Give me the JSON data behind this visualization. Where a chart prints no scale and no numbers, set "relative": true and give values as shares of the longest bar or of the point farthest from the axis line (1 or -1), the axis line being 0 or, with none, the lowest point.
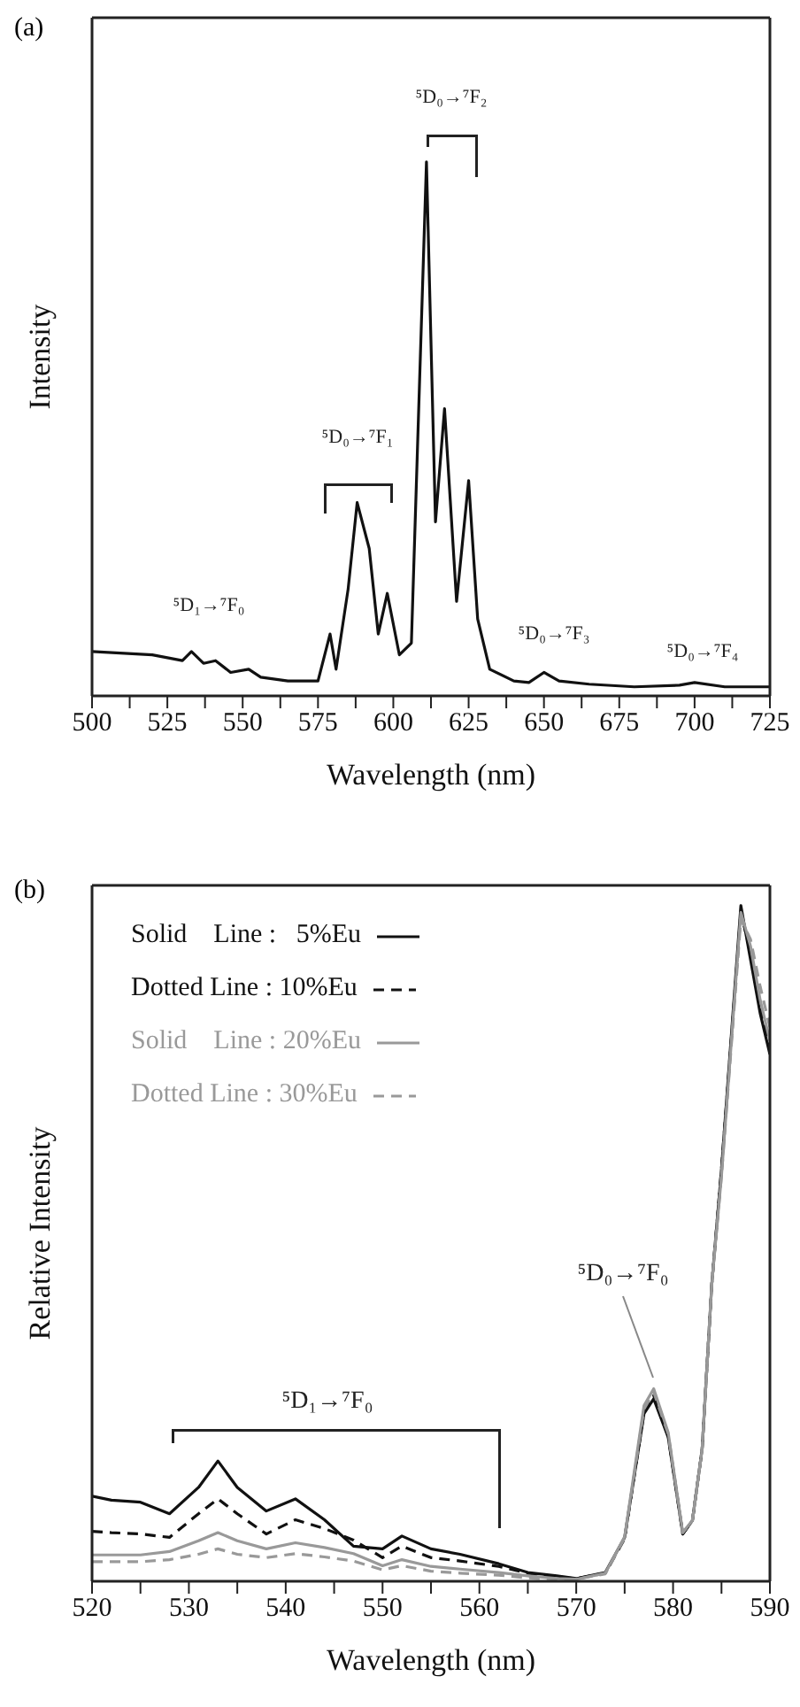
{
  "chart_data": [
    {
      "type": "line",
      "title": "(a)",
      "xlabel": "Wavelength (nm)",
      "ylabel": "Intensity",
      "relative": true,
      "x": [
        500,
        520,
        530,
        533,
        537,
        541,
        546,
        552,
        556,
        565,
        575,
        579,
        581,
        585,
        588,
        592,
        595,
        598,
        602,
        606,
        611,
        614,
        617,
        621,
        625,
        628,
        632,
        640,
        645,
        650,
        655,
        665,
        680,
        695,
        700,
        710,
        725
      ],
      "series": [
        {
          "color": "#111111",
          "line_style": "solid",
          "values": [
            0.083,
            0.077,
            0.066,
            0.083,
            0.061,
            0.066,
            0.044,
            0.05,
            0.035,
            0.028,
            0.028,
            0.116,
            0.05,
            0.2,
            0.362,
            0.276,
            0.116,
            0.192,
            0.077,
            0.099,
            1,
            0.326,
            0.538,
            0.177,
            0.403,
            0.144,
            0.05,
            0.028,
            0.025,
            0.044,
            0.028,
            0.022,
            0.017,
            0.02,
            0.025,
            0.017,
            0.017
          ]
        }
      ],
      "xlim": [
        500,
        725
      ],
      "xticks": [
        500,
        {
          "value": 512.5,
          "label": null
        },
        525,
        {
          "value": 537.5,
          "label": null
        },
        550,
        {
          "value": 562.5,
          "label": null
        },
        575,
        {
          "value": 587.5,
          "label": null
        },
        600,
        {
          "value": 612.5,
          "label": null
        },
        625,
        {
          "value": 637.5,
          "label": null
        },
        650,
        {
          "value": 662.5,
          "label": null
        },
        675,
        {
          "value": 687.5,
          "label": null
        },
        700,
        {
          "value": 712.5,
          "label": null
        },
        725
      ],
      "annotations": [
        "⁵D₁→⁷F₀",
        "⁵D₀→⁷F₁",
        "⁵D₀→⁷F₂",
        "⁵D₀→⁷F₃",
        "⁵D₀→⁷F₄"
      ],
      "grid": false,
      "legend": false
    },
    {
      "type": "line",
      "title": "(b)",
      "xlabel": "Wavelength (nm)",
      "ylabel": "Relative Intensity",
      "relative": true,
      "x": [
        520,
        522,
        525,
        528,
        531,
        533,
        535,
        538,
        541,
        544,
        547,
        550,
        552,
        555,
        558,
        562,
        565,
        568,
        570,
        573,
        575,
        577,
        578,
        579.5,
        581,
        582,
        583,
        584,
        585,
        587,
        588,
        589,
        590
      ],
      "series": [
        {
          "name": "Solid    Line :   5%Eu",
          "color": "#111111",
          "line_style": "solid",
          "values": [
            0.126,
            0.12,
            0.117,
            0.1,
            0.139,
            0.178,
            0.139,
            0.104,
            0.122,
            0.091,
            0.052,
            0.048,
            0.067,
            0.048,
            0.04,
            0.026,
            0.013,
            0.008,
            0.004,
            0.013,
            0.065,
            0.248,
            0.27,
            0.213,
            0.07,
            0.09,
            0.196,
            0.44,
            0.61,
            1,
            0.92,
            0.84,
            0.78
          ]
        },
        {
          "name": "Dotted Line : 10%Eu",
          "color": "#111111",
          "line_style": "dashed",
          "values": [
            0.074,
            0.072,
            0.07,
            0.065,
            0.1,
            0.122,
            0.1,
            0.07,
            0.091,
            0.078,
            0.061,
            0.035,
            0.052,
            0.035,
            0.03,
            0.022,
            0.012,
            0.006,
            0.004,
            0.012,
            0.063,
            0.25,
            0.275,
            0.215,
            0.07,
            0.09,
            0.195,
            0.44,
            0.61,
            0.99,
            0.93,
            0.85,
            0.79
          ]
        },
        {
          "name": "Solid    Line : 20%Eu",
          "color": "#999999",
          "line_style": "solid",
          "values": [
            0.039,
            0.039,
            0.039,
            0.044,
            0.06,
            0.072,
            0.06,
            0.048,
            0.057,
            0.05,
            0.041,
            0.023,
            0.032,
            0.022,
            0.018,
            0.013,
            0.008,
            0.004,
            0.003,
            0.012,
            0.066,
            0.26,
            0.285,
            0.22,
            0.072,
            0.09,
            0.195,
            0.44,
            0.6,
            0.99,
            0.94,
            0.86,
            0.8
          ]
        },
        {
          "name": "Dotted Line : 30%Eu",
          "color": "#999999",
          "line_style": "dashed",
          "values": [
            0.029,
            0.029,
            0.029,
            0.032,
            0.04,
            0.048,
            0.04,
            0.035,
            0.041,
            0.036,
            0.03,
            0.017,
            0.023,
            0.015,
            0.012,
            0.009,
            0.005,
            0.003,
            0.003,
            0.011,
            0.064,
            0.255,
            0.28,
            0.218,
            0.072,
            0.09,
            0.195,
            0.44,
            0.6,
            0.98,
            0.95,
            0.88,
            0.82
          ]
        }
      ],
      "xlim": [
        520,
        590
      ],
      "xticks": [
        520,
        {
          "value": 525,
          "label": null
        },
        530,
        {
          "value": 535,
          "label": null
        },
        540,
        {
          "value": 545,
          "label": null
        },
        550,
        {
          "value": 555,
          "label": null
        },
        560,
        {
          "value": 565,
          "label": null
        },
        570,
        {
          "value": 575,
          "label": null
        },
        580,
        {
          "value": 585,
          "label": null
        },
        590
      ],
      "annotations": [
        "⁵D₁→⁷F₀",
        "⁵D₀→⁷F₀"
      ],
      "grid": false,
      "legend": "top left"
    }
  ]
}
